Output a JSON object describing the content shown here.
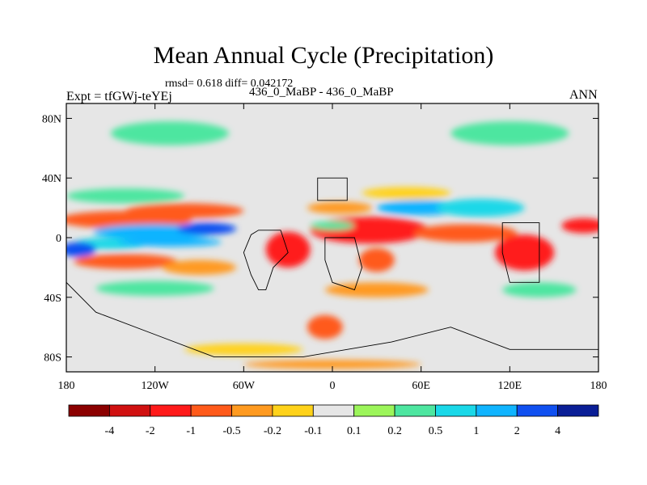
{
  "chart_data": {
    "type": "heatmap",
    "title": "Mean Annual Cycle (Precipitation)",
    "stats_line": "rmsd= 0.618 diff= 0.042172",
    "left_label": "Expt = tfGWj-teYEj",
    "center_label": "436_0_MaBP - 436_0_MaBP",
    "right_label": "ANN",
    "xlim": [
      -180,
      180
    ],
    "ylim": [
      -90,
      90
    ],
    "x_ticks": [
      {
        "value": -180,
        "label": "180"
      },
      {
        "value": -120,
        "label": "120W"
      },
      {
        "value": -60,
        "label": "60W"
      },
      {
        "value": 0,
        "label": "0"
      },
      {
        "value": 60,
        "label": "60E"
      },
      {
        "value": 120,
        "label": "120E"
      },
      {
        "value": 180,
        "label": "180"
      }
    ],
    "y_ticks": [
      {
        "value": 80,
        "label": "80N"
      },
      {
        "value": 40,
        "label": "40N"
      },
      {
        "value": 0,
        "label": "0"
      },
      {
        "value": -40,
        "label": "40S"
      },
      {
        "value": -80,
        "label": "80S"
      }
    ],
    "colorbar": {
      "colors": [
        "#8b0000",
        "#d01010",
        "#ff1a1a",
        "#ff5a1a",
        "#ff9a20",
        "#ffd21a",
        "#e6e6e6",
        "#9cf55a",
        "#4de6a0",
        "#1ad8e8",
        "#10b4ff",
        "#1050f0",
        "#0a1e96"
      ],
      "boundary_labels": [
        "-4",
        "-2",
        "-1",
        "-0.5",
        "-0.2",
        "-0.1",
        "0.1",
        "0.2",
        "0.5",
        "1",
        "2",
        "4"
      ]
    },
    "features": [
      {
        "lon": -140,
        "lat": 12,
        "rx": 45,
        "ry": 6,
        "level": -1
      },
      {
        "lon": -100,
        "lat": 18,
        "rx": 40,
        "ry": 5,
        "level": -1
      },
      {
        "lon": -120,
        "lat": 4,
        "rx": 42,
        "ry": 5,
        "level": 1.5
      },
      {
        "lon": -85,
        "lat": 6,
        "rx": 20,
        "ry": 4,
        "level": 2.2
      },
      {
        "lon": -150,
        "lat": -4,
        "rx": 25,
        "ry": 4,
        "level": 0.7
      },
      {
        "lon": -110,
        "lat": -3,
        "rx": 35,
        "ry": 3,
        "level": 1
      },
      {
        "lon": -172,
        "lat": -8,
        "rx": 12,
        "ry": 5,
        "level": 2.5
      },
      {
        "lon": -140,
        "lat": -16,
        "rx": 35,
        "ry": 5,
        "level": -0.7
      },
      {
        "lon": -90,
        "lat": -20,
        "rx": 25,
        "ry": 5,
        "level": -0.5
      },
      {
        "lon": -140,
        "lat": 28,
        "rx": 40,
        "ry": 5,
        "level": 0.4
      },
      {
        "lon": -120,
        "lat": -34,
        "rx": 40,
        "ry": 5,
        "level": 0.4
      },
      {
        "lon": -30,
        "lat": -8,
        "rx": 15,
        "ry": 12,
        "level": -1.2
      },
      {
        "lon": 25,
        "lat": 5,
        "rx": 40,
        "ry": 9,
        "level": -1.5
      },
      {
        "lon": 30,
        "lat": -15,
        "rx": 12,
        "ry": 8,
        "level": -1
      },
      {
        "lon": 90,
        "lat": 3,
        "rx": 35,
        "ry": 6,
        "level": -0.8
      },
      {
        "lon": 130,
        "lat": -10,
        "rx": 20,
        "ry": 12,
        "level": -1.2
      },
      {
        "lon": 170,
        "lat": 8,
        "rx": 15,
        "ry": 5,
        "level": -1.2
      },
      {
        "lon": 60,
        "lat": 20,
        "rx": 30,
        "ry": 5,
        "level": 1
      },
      {
        "lon": 100,
        "lat": 20,
        "rx": 30,
        "ry": 6,
        "level": 0.5
      },
      {
        "lon": 5,
        "lat": 20,
        "rx": 22,
        "ry": 4,
        "level": -0.5
      },
      {
        "lon": 0,
        "lat": 8,
        "rx": 15,
        "ry": 3,
        "level": 0.4
      },
      {
        "lon": 50,
        "lat": 30,
        "rx": 30,
        "ry": 4,
        "level": -0.2
      },
      {
        "lon": 30,
        "lat": -35,
        "rx": 35,
        "ry": 5,
        "level": -0.5
      },
      {
        "lon": -5,
        "lat": -60,
        "rx": 12,
        "ry": 8,
        "level": -0.6
      },
      {
        "lon": 140,
        "lat": -35,
        "rx": 25,
        "ry": 5,
        "level": 0.3
      },
      {
        "lon": -110,
        "lat": 70,
        "rx": 40,
        "ry": 8,
        "level": 0.2
      },
      {
        "lon": 120,
        "lat": 70,
        "rx": 40,
        "ry": 8,
        "level": 0.2
      },
      {
        "lon": -60,
        "lat": -75,
        "rx": 40,
        "ry": 4,
        "level": -0.15
      },
      {
        "lon": 0,
        "lat": -85,
        "rx": 60,
        "ry": 3,
        "level": -0.3
      }
    ],
    "continent_outlines": [
      {
        "name": "south-america",
        "points": [
          [
            -50,
            5
          ],
          [
            -35,
            5
          ],
          [
            -30,
            -10
          ],
          [
            -40,
            -20
          ],
          [
            -45,
            -35
          ],
          [
            -50,
            -35
          ],
          [
            -55,
            -25
          ],
          [
            -60,
            -10
          ],
          [
            -55,
            2
          ]
        ]
      },
      {
        "name": "africa",
        "points": [
          [
            -5,
            0
          ],
          [
            15,
            0
          ],
          [
            20,
            -20
          ],
          [
            15,
            -35
          ],
          [
            0,
            -30
          ],
          [
            -5,
            -15
          ]
        ]
      },
      {
        "name": "maritime-continent",
        "points": [
          [
            115,
            10
          ],
          [
            140,
            10
          ],
          [
            140,
            -30
          ],
          [
            120,
            -30
          ],
          [
            115,
            -10
          ]
        ]
      },
      {
        "name": "north-box",
        "points": [
          [
            -10,
            40
          ],
          [
            10,
            40
          ],
          [
            10,
            25
          ],
          [
            -10,
            25
          ]
        ]
      },
      {
        "name": "antarctic-edge",
        "points": [
          [
            -180,
            -30
          ],
          [
            -160,
            -50
          ],
          [
            -120,
            -65
          ],
          [
            -80,
            -80
          ],
          [
            -20,
            -80
          ],
          [
            40,
            -70
          ],
          [
            80,
            -60
          ],
          [
            120,
            -75
          ],
          [
            180,
            -75
          ]
        ]
      }
    ]
  }
}
